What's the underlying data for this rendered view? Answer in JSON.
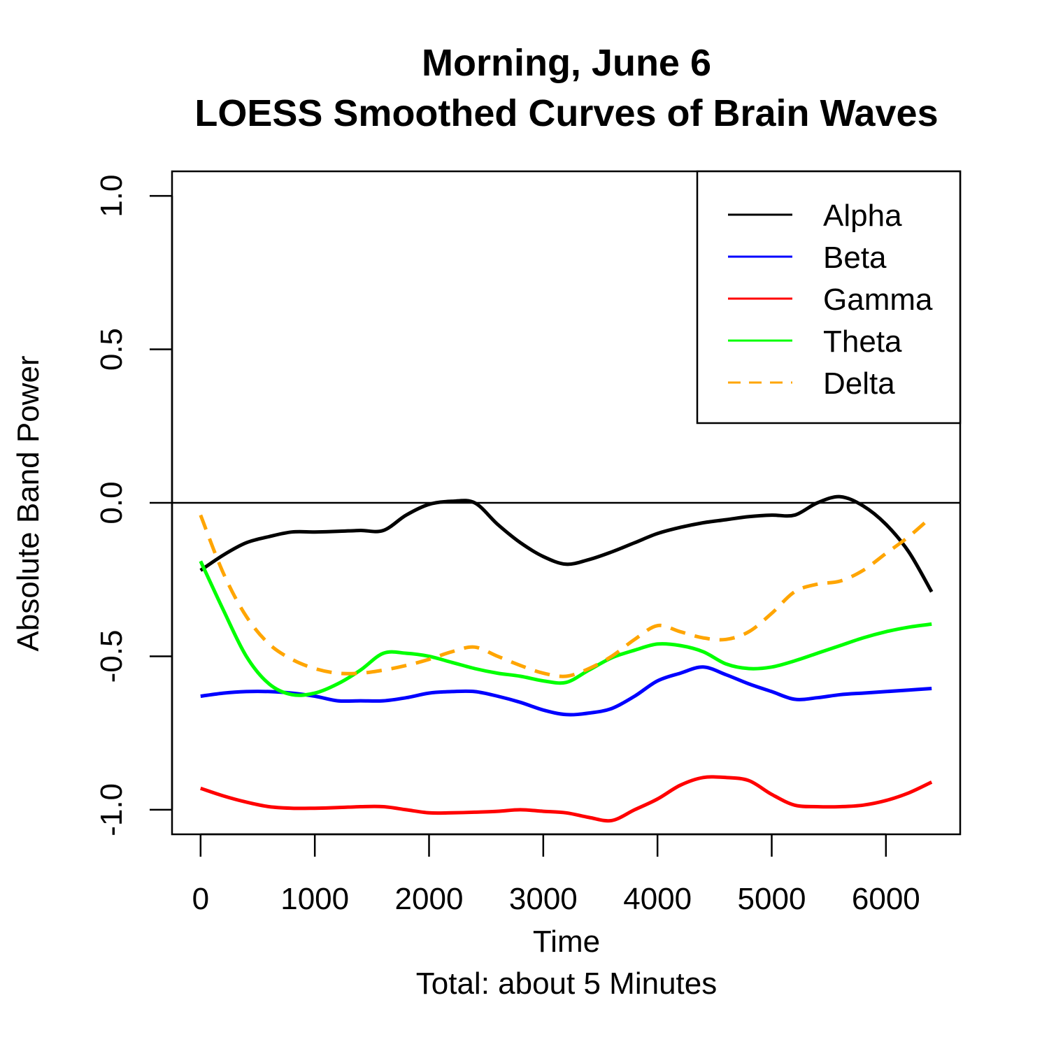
{
  "chart_data": {
    "type": "line",
    "title": "Morning, June 6",
    "subtitle": "LOESS Smoothed Curves of Brain Waves",
    "xlabel": "Time",
    "xlabel_note": "Total: about 5 Minutes",
    "ylabel": "Absolute Band Power",
    "xlim": [
      -250,
      6650
    ],
    "ylim": [
      -1.08,
      1.08
    ],
    "x_ticks": [
      0,
      1000,
      2000,
      3000,
      4000,
      5000,
      6000
    ],
    "x_tick_labels": [
      "0",
      "1000",
      "2000",
      "3000",
      "4000",
      "5000",
      "6000"
    ],
    "y_ticks": [
      -1.0,
      -0.5,
      0.0,
      0.5,
      1.0
    ],
    "y_tick_labels": [
      "-1.0",
      "-0.5",
      "0.0",
      "0.5",
      "1.0"
    ],
    "reference_line_y": 0.0,
    "grid": false,
    "legend_position": "top-right",
    "x": [
      0,
      200,
      400,
      600,
      800,
      1000,
      1200,
      1400,
      1600,
      1800,
      2000,
      2200,
      2400,
      2600,
      2800,
      3000,
      3200,
      3400,
      3600,
      3800,
      4000,
      4200,
      4400,
      4600,
      4800,
      5000,
      5200,
      5400,
      5600,
      5800,
      6000,
      6200,
      6400
    ],
    "series": [
      {
        "name": "Alpha",
        "color": "#000000",
        "dash": "solid",
        "values": [
          -0.22,
          -0.17,
          -0.13,
          -0.11,
          -0.095,
          -0.095,
          -0.093,
          -0.09,
          -0.09,
          -0.04,
          -0.005,
          0.005,
          0.0,
          -0.07,
          -0.13,
          -0.175,
          -0.2,
          -0.185,
          -0.16,
          -0.13,
          -0.1,
          -0.08,
          -0.065,
          -0.055,
          -0.045,
          -0.04,
          -0.04,
          0.0,
          0.02,
          -0.01,
          -0.07,
          -0.16,
          -0.29
        ]
      },
      {
        "name": "Beta",
        "color": "#0000FF",
        "dash": "solid",
        "values": [
          -0.63,
          -0.62,
          -0.615,
          -0.615,
          -0.62,
          -0.63,
          -0.645,
          -0.645,
          -0.645,
          -0.635,
          -0.62,
          -0.615,
          -0.615,
          -0.63,
          -0.65,
          -0.675,
          -0.69,
          -0.685,
          -0.67,
          -0.63,
          -0.58,
          -0.555,
          -0.535,
          -0.56,
          -0.59,
          -0.615,
          -0.64,
          -0.635,
          -0.625,
          -0.62,
          -0.615,
          -0.61,
          -0.605
        ]
      },
      {
        "name": "Gamma",
        "color": "#FF0000",
        "dash": "solid",
        "values": [
          -0.93,
          -0.955,
          -0.975,
          -0.99,
          -0.995,
          -0.995,
          -0.993,
          -0.99,
          -0.99,
          -1.0,
          -1.01,
          -1.01,
          -1.008,
          -1.005,
          -1.0,
          -1.005,
          -1.01,
          -1.025,
          -1.035,
          -1.0,
          -0.965,
          -0.92,
          -0.895,
          -0.895,
          -0.905,
          -0.95,
          -0.985,
          -0.99,
          -0.99,
          -0.985,
          -0.97,
          -0.945,
          -0.91
        ]
      },
      {
        "name": "Theta",
        "color": "#00FF00",
        "dash": "solid",
        "values": [
          -0.19,
          -0.35,
          -0.5,
          -0.59,
          -0.625,
          -0.62,
          -0.59,
          -0.545,
          -0.49,
          -0.49,
          -0.5,
          -0.52,
          -0.54,
          -0.555,
          -0.565,
          -0.58,
          -0.585,
          -0.545,
          -0.505,
          -0.48,
          -0.46,
          -0.465,
          -0.485,
          -0.525,
          -0.54,
          -0.535,
          -0.515,
          -0.49,
          -0.465,
          -0.44,
          -0.42,
          -0.405,
          -0.395
        ]
      },
      {
        "name": "Delta",
        "color": "#FFA500",
        "dash": "dashed",
        "values": [
          -0.04,
          -0.23,
          -0.37,
          -0.46,
          -0.51,
          -0.54,
          -0.555,
          -0.555,
          -0.545,
          -0.53,
          -0.51,
          -0.485,
          -0.47,
          -0.5,
          -0.53,
          -0.555,
          -0.565,
          -0.54,
          -0.5,
          -0.445,
          -0.4,
          -0.42,
          -0.44,
          -0.445,
          -0.42,
          -0.36,
          -0.29,
          -0.265,
          -0.255,
          -0.22,
          -0.165,
          -0.11,
          -0.045
        ]
      }
    ]
  }
}
